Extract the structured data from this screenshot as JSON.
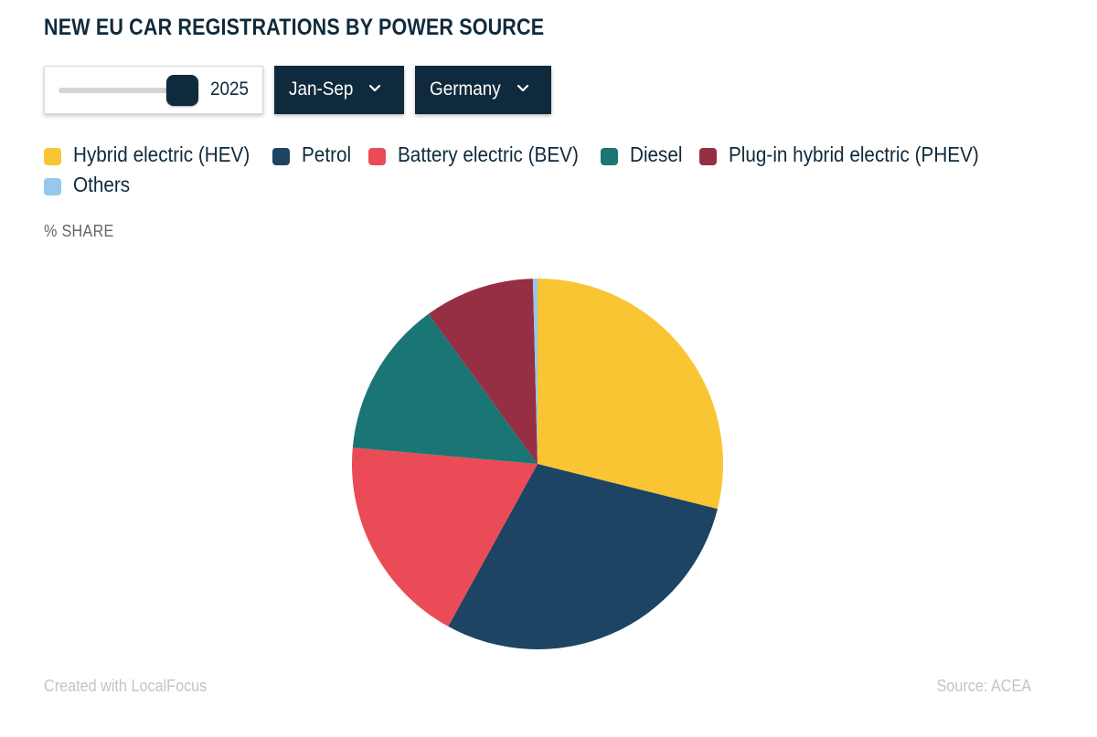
{
  "title": "NEW EU CAR REGISTRATIONS BY POWER SOURCE",
  "controls": {
    "year_value": "2025",
    "period_label": "Jan-Sep",
    "country_label": "Germany",
    "theme_color": "#0f2a3c"
  },
  "units_label": "% SHARE",
  "chart_data": {
    "type": "pie",
    "title": "NEW EU CAR REGISTRATIONS BY POWER SOURCE",
    "unit": "% SHARE",
    "legend_position": "top",
    "slices": [
      {
        "name": "Hybrid electric (HEV)",
        "value": 28.9,
        "color": "#f9c532"
      },
      {
        "name": "Petrol",
        "value": 29.1,
        "color": "#1d4463"
      },
      {
        "name": "Battery electric (BEV)",
        "value": 18.4,
        "color": "#eb4b56"
      },
      {
        "name": "Diesel",
        "value": 13.6,
        "color": "#1a7675"
      },
      {
        "name": "Plug-in hybrid electric (PHEV)",
        "value": 9.6,
        "color": "#962e44"
      },
      {
        "name": "Others",
        "value": 0.4,
        "color": "#96c7ec"
      }
    ]
  },
  "footer": {
    "credit": "Created with LocalFocus",
    "source": "Source:  ACEA"
  }
}
